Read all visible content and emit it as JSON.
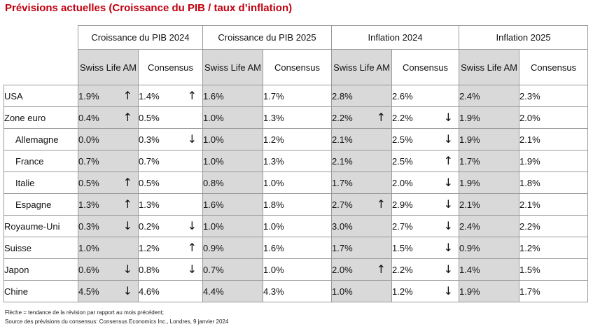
{
  "title": "Prévisions actuelles (Croissance du PIB / taux d’inflation)",
  "groups": [
    "Croissance du PIB 2024",
    "Croissance du PIB 2025",
    "Inflation 2024",
    "Inflation 2025"
  ],
  "sub_headers": [
    "Swiss Life AM",
    "Consensus"
  ],
  "rows": [
    {
      "country": "USA",
      "indent": false,
      "cells": [
        {
          "v": "1.9%",
          "a": "up"
        },
        {
          "v": "1.4%",
          "a": "up"
        },
        {
          "v": "1.6%",
          "a": ""
        },
        {
          "v": "1.7%",
          "a": ""
        },
        {
          "v": "2.8%",
          "a": ""
        },
        {
          "v": "2.6%",
          "a": ""
        },
        {
          "v": "2.4%",
          "a": ""
        },
        {
          "v": "2.3%",
          "a": ""
        }
      ]
    },
    {
      "country": "Zone euro",
      "indent": false,
      "cells": [
        {
          "v": "0.4%",
          "a": "up"
        },
        {
          "v": "0.5%",
          "a": ""
        },
        {
          "v": "1.0%",
          "a": ""
        },
        {
          "v": "1.3%",
          "a": ""
        },
        {
          "v": "2.2%",
          "a": "up"
        },
        {
          "v": "2.2%",
          "a": "down"
        },
        {
          "v": "1.9%",
          "a": ""
        },
        {
          "v": "2.0%",
          "a": ""
        }
      ]
    },
    {
      "country": "Allemagne",
      "indent": true,
      "cells": [
        {
          "v": "0.0%",
          "a": ""
        },
        {
          "v": "0.3%",
          "a": "down"
        },
        {
          "v": "1.0%",
          "a": ""
        },
        {
          "v": "1.2%",
          "a": ""
        },
        {
          "v": "2.1%",
          "a": ""
        },
        {
          "v": "2.5%",
          "a": "down"
        },
        {
          "v": "1.9%",
          "a": ""
        },
        {
          "v": "2.1%",
          "a": ""
        }
      ]
    },
    {
      "country": "France",
      "indent": true,
      "cells": [
        {
          "v": "0.7%",
          "a": ""
        },
        {
          "v": "0.7%",
          "a": ""
        },
        {
          "v": "1.0%",
          "a": ""
        },
        {
          "v": "1.3%",
          "a": ""
        },
        {
          "v": "2.1%",
          "a": ""
        },
        {
          "v": "2.5%",
          "a": "up"
        },
        {
          "v": "1.7%",
          "a": ""
        },
        {
          "v": "1.9%",
          "a": ""
        }
      ]
    },
    {
      "country": "Italie",
      "indent": true,
      "cells": [
        {
          "v": "0.5%",
          "a": "up"
        },
        {
          "v": "0.5%",
          "a": ""
        },
        {
          "v": "0.8%",
          "a": ""
        },
        {
          "v": "1.0%",
          "a": ""
        },
        {
          "v": "1.7%",
          "a": ""
        },
        {
          "v": "2.0%",
          "a": "down"
        },
        {
          "v": "1.9%",
          "a": ""
        },
        {
          "v": "1.8%",
          "a": ""
        }
      ]
    },
    {
      "country": "Espagne",
      "indent": true,
      "cells": [
        {
          "v": "1.3%",
          "a": "up"
        },
        {
          "v": "1.3%",
          "a": ""
        },
        {
          "v": "1.6%",
          "a": ""
        },
        {
          "v": "1.8%",
          "a": ""
        },
        {
          "v": "2.7%",
          "a": "up"
        },
        {
          "v": "2.9%",
          "a": "down"
        },
        {
          "v": "2.1%",
          "a": ""
        },
        {
          "v": "2.1%",
          "a": ""
        }
      ]
    },
    {
      "country": "Royaume-Uni",
      "indent": false,
      "cells": [
        {
          "v": "0.3%",
          "a": "down"
        },
        {
          "v": "0.2%",
          "a": "down"
        },
        {
          "v": "1.0%",
          "a": ""
        },
        {
          "v": "1.0%",
          "a": ""
        },
        {
          "v": "3.0%",
          "a": ""
        },
        {
          "v": "2.7%",
          "a": "down"
        },
        {
          "v": "2.4%",
          "a": ""
        },
        {
          "v": "2.2%",
          "a": ""
        }
      ]
    },
    {
      "country": "Suisse",
      "indent": false,
      "cells": [
        {
          "v": "1.0%",
          "a": ""
        },
        {
          "v": "1.2%",
          "a": "up"
        },
        {
          "v": "0.9%",
          "a": ""
        },
        {
          "v": "1.6%",
          "a": ""
        },
        {
          "v": "1.7%",
          "a": ""
        },
        {
          "v": "1.5%",
          "a": "down"
        },
        {
          "v": "0.9%",
          "a": ""
        },
        {
          "v": "1.2%",
          "a": ""
        }
      ]
    },
    {
      "country": "Japon",
      "indent": false,
      "cells": [
        {
          "v": "0.6%",
          "a": "down"
        },
        {
          "v": "0.8%",
          "a": "down"
        },
        {
          "v": "0.7%",
          "a": ""
        },
        {
          "v": "1.0%",
          "a": ""
        },
        {
          "v": "2.0%",
          "a": "up"
        },
        {
          "v": "2.2%",
          "a": "down"
        },
        {
          "v": "1.4%",
          "a": ""
        },
        {
          "v": "1.5%",
          "a": ""
        }
      ]
    },
    {
      "country": "Chine",
      "indent": false,
      "cells": [
        {
          "v": "4.5%",
          "a": "down"
        },
        {
          "v": "4.6%",
          "a": ""
        },
        {
          "v": "4.4%",
          "a": ""
        },
        {
          "v": "4.3%",
          "a": ""
        },
        {
          "v": "1.0%",
          "a": ""
        },
        {
          "v": "1.2%",
          "a": "down"
        },
        {
          "v": "1.9%",
          "a": ""
        },
        {
          "v": "1.7%",
          "a": ""
        }
      ]
    }
  ],
  "footer_lines": [
    "Flèche = tendance de la révision par rapport au mois précédent;",
    "Source des prévisions du consensus: Consensus Economics Inc., Londres, 9 janvier  2024"
  ],
  "colors": {
    "title": "#c0000f",
    "swiss_life_fill": "#d9d9d9",
    "border": "#9a9a9a"
  },
  "arrow_icons": {
    "up": "arrow-up-icon",
    "down": "arrow-down-icon"
  }
}
